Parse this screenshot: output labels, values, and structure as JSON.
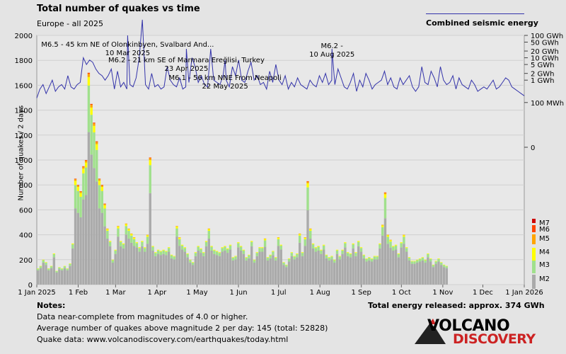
{
  "chart_data": {
    "type": "bar",
    "title": "Total number of quakes vs time",
    "subtitle": "Europe - all 2025",
    "ylabel": "Number of quakes / 2 days",
    "ylim": [
      0,
      2000
    ],
    "yticks": [
      0,
      200,
      400,
      600,
      800,
      1000,
      1200,
      1400,
      1600,
      1800,
      2000
    ],
    "x_start": "2025-01-01",
    "x_end": "2026-01-01",
    "x_tick_labels": [
      "1 Jan 2025",
      "1 Feb",
      "1 Mar",
      "1 Apr",
      "1 May",
      "1 Jun",
      "1 Jul",
      "1 Aug",
      "1 Sep",
      "1 Oct",
      "1 Nov",
      "1 Dec",
      "1 Jan 2026"
    ],
    "x_tick_dates": [
      "2025-01-01",
      "2025-02-01",
      "2025-03-01",
      "2025-04-01",
      "2025-05-01",
      "2025-06-01",
      "2025-07-01",
      "2025-08-01",
      "2025-09-01",
      "2025-10-01",
      "2025-11-01",
      "2025-12-01",
      "2026-01-01"
    ],
    "bin_days": 2,
    "counts": [
      130,
      150,
      200,
      180,
      130,
      150,
      250,
      110,
      140,
      130,
      150,
      130,
      170,
      330,
      850,
      800,
      750,
      950,
      1000,
      1700,
      1450,
      1300,
      1150,
      850,
      800,
      650,
      450,
      350,
      200,
      280,
      470,
      350,
      330,
      490,
      450,
      410,
      380,
      340,
      300,
      350,
      300,
      400,
      1020,
      310,
      260,
      280,
      270,
      280,
      270,
      300,
      240,
      230,
      470,
      380,
      320,
      300,
      250,
      200,
      180,
      260,
      310,
      290,
      260,
      350,
      450,
      310,
      280,
      270,
      260,
      300,
      310,
      290,
      320,
      220,
      230,
      340,
      310,
      280,
      220,
      240,
      350,
      200,
      260,
      300,
      300,
      370,
      220,
      240,
      270,
      220,
      380,
      320,
      180,
      160,
      210,
      260,
      230,
      250,
      410,
      260,
      380,
      830,
      450,
      330,
      300,
      310,
      280,
      320,
      240,
      220,
      230,
      200,
      280,
      230,
      280,
      340,
      260,
      250,
      330,
      260,
      350,
      300,
      240,
      210,
      220,
      210,
      230,
      230,
      330,
      480,
      740,
      400,
      360,
      310,
      320,
      250,
      340,
      400,
      300,
      220,
      190,
      190,
      200,
      210,
      220,
      200,
      250,
      210,
      160,
      190,
      210,
      180,
      160,
      150
    ],
    "series": [
      {
        "name": "M2",
        "color": "#aaaaaa"
      },
      {
        "name": "M3",
        "color": "#a0e08c"
      },
      {
        "name": "M4",
        "color": "#ffff00"
      },
      {
        "name": "M5",
        "color": "#ffa500"
      },
      {
        "name": "M6",
        "color": "#ff4400"
      },
      {
        "name": "M7",
        "color": "#cc0000"
      }
    ],
    "energy_axis": {
      "label": "Combined seismic energy",
      "ticks": [
        "100 GWh",
        "50 GWh",
        "20 GWh",
        "10 GWh",
        "5 GWh",
        "2 GWh",
        "1 GWh",
        "100 MWh",
        "0"
      ],
      "tick_log10_mwh": [
        5,
        4.699,
        4.301,
        4,
        3.699,
        3.301,
        3,
        2,
        0
      ]
    },
    "energy_series_log10_mwh": [
      2.2,
      2.6,
      2.8,
      2.4,
      2.7,
      3.0,
      2.5,
      2.7,
      2.8,
      2.6,
      3.2,
      2.7,
      2.6,
      2.8,
      2.9,
      4.0,
      3.7,
      3.9,
      3.8,
      3.5,
      3.3,
      3.2,
      3.0,
      3.2,
      3.5,
      2.6,
      3.4,
      2.7,
      2.9,
      2.6,
      2.8,
      2.7,
      3.1,
      4.0,
      5.7,
      2.8,
      2.6,
      3.3,
      2.7,
      2.8,
      2.6,
      2.7,
      3.6,
      3.0,
      2.8,
      2.7,
      3.1,
      2.6,
      2.7,
      2.9,
      4.0,
      3.6,
      2.9,
      3.2,
      2.8,
      2.7,
      4.4,
      3.0,
      2.9,
      2.8,
      3.2,
      3.0,
      2.7,
      3.6,
      3.2,
      3.9,
      3.0,
      2.9,
      3.4,
      3.8,
      3.0,
      3.2,
      2.8,
      2.9,
      2.6,
      3.4,
      2.9,
      3.7,
      3.0,
      2.8,
      3.2,
      2.6,
      2.9,
      2.7,
      3.1,
      2.8,
      2.7,
      2.6,
      3.0,
      2.8,
      2.7,
      3.2,
      2.9,
      3.3,
      2.8,
      3.0,
      2.8,
      3.5,
      3.1,
      2.7,
      2.6,
      2.9,
      3.3,
      2.5,
      3.0,
      2.7,
      3.3,
      3.0,
      2.6,
      2.8,
      2.9,
      3.0,
      3.4,
      2.8,
      3.1,
      2.7,
      2.6,
      3.1,
      2.8,
      3.0,
      3.2,
      2.7,
      2.5,
      2.7,
      3.6,
      2.9,
      2.8,
      3.4,
      3.1,
      2.7,
      3.6,
      3.0,
      2.8,
      2.9,
      3.2,
      2.6,
      3.1,
      2.8,
      2.7,
      2.6,
      3.0,
      2.8,
      2.5,
      2.6,
      2.7,
      2.6,
      2.8,
      3.0,
      2.6,
      2.7,
      2.9,
      3.1,
      3.0,
      2.7,
      2.6,
      2.5,
      2.4,
      2.3
    ],
    "energy_spikes": [
      {
        "date": "2025-03-10",
        "log10_mwh": 5.0
      },
      {
        "date": "2025-04-23",
        "log10_mwh": 4.4
      },
      {
        "date": "2025-05-22",
        "log10_mwh": 3.9
      },
      {
        "date": "2025-08-10",
        "log10_mwh": 4.4
      }
    ],
    "annotations": [
      {
        "date": "2025-03-10",
        "lines": [
          "M6.5 - 45 km NE of Olonkinbyen, Svalbard And...",
          "10 Mar 2025"
        ]
      },
      {
        "date": "2025-04-23",
        "lines": [
          "M6.2 - 21 km SE of Marmara Ereğlisi, Turkey",
          "23 Apr 2025"
        ]
      },
      {
        "date": "2025-05-22",
        "lines": [
          "M6.1 - 56 km NNE From Neapoli",
          "22 May 2025"
        ]
      },
      {
        "date": "2025-08-10",
        "lines": [
          "M6.2 -",
          "10 Aug 2025"
        ]
      }
    ]
  },
  "notes": {
    "title": "Notes:",
    "line1": "Data near-complete from magnitudes of 4.0 or higher.",
    "line2": "Average number of quakes above magnitude 2 per day: 145 (total: 52828)",
    "line3": "Quake data: www.volcanodiscovery.com/earthquakes/today.html"
  },
  "total_energy": "Total energy released: approx. 374 GWh",
  "logo": {
    "top": "VOLCANO",
    "bottom": "DISCOVERY"
  }
}
